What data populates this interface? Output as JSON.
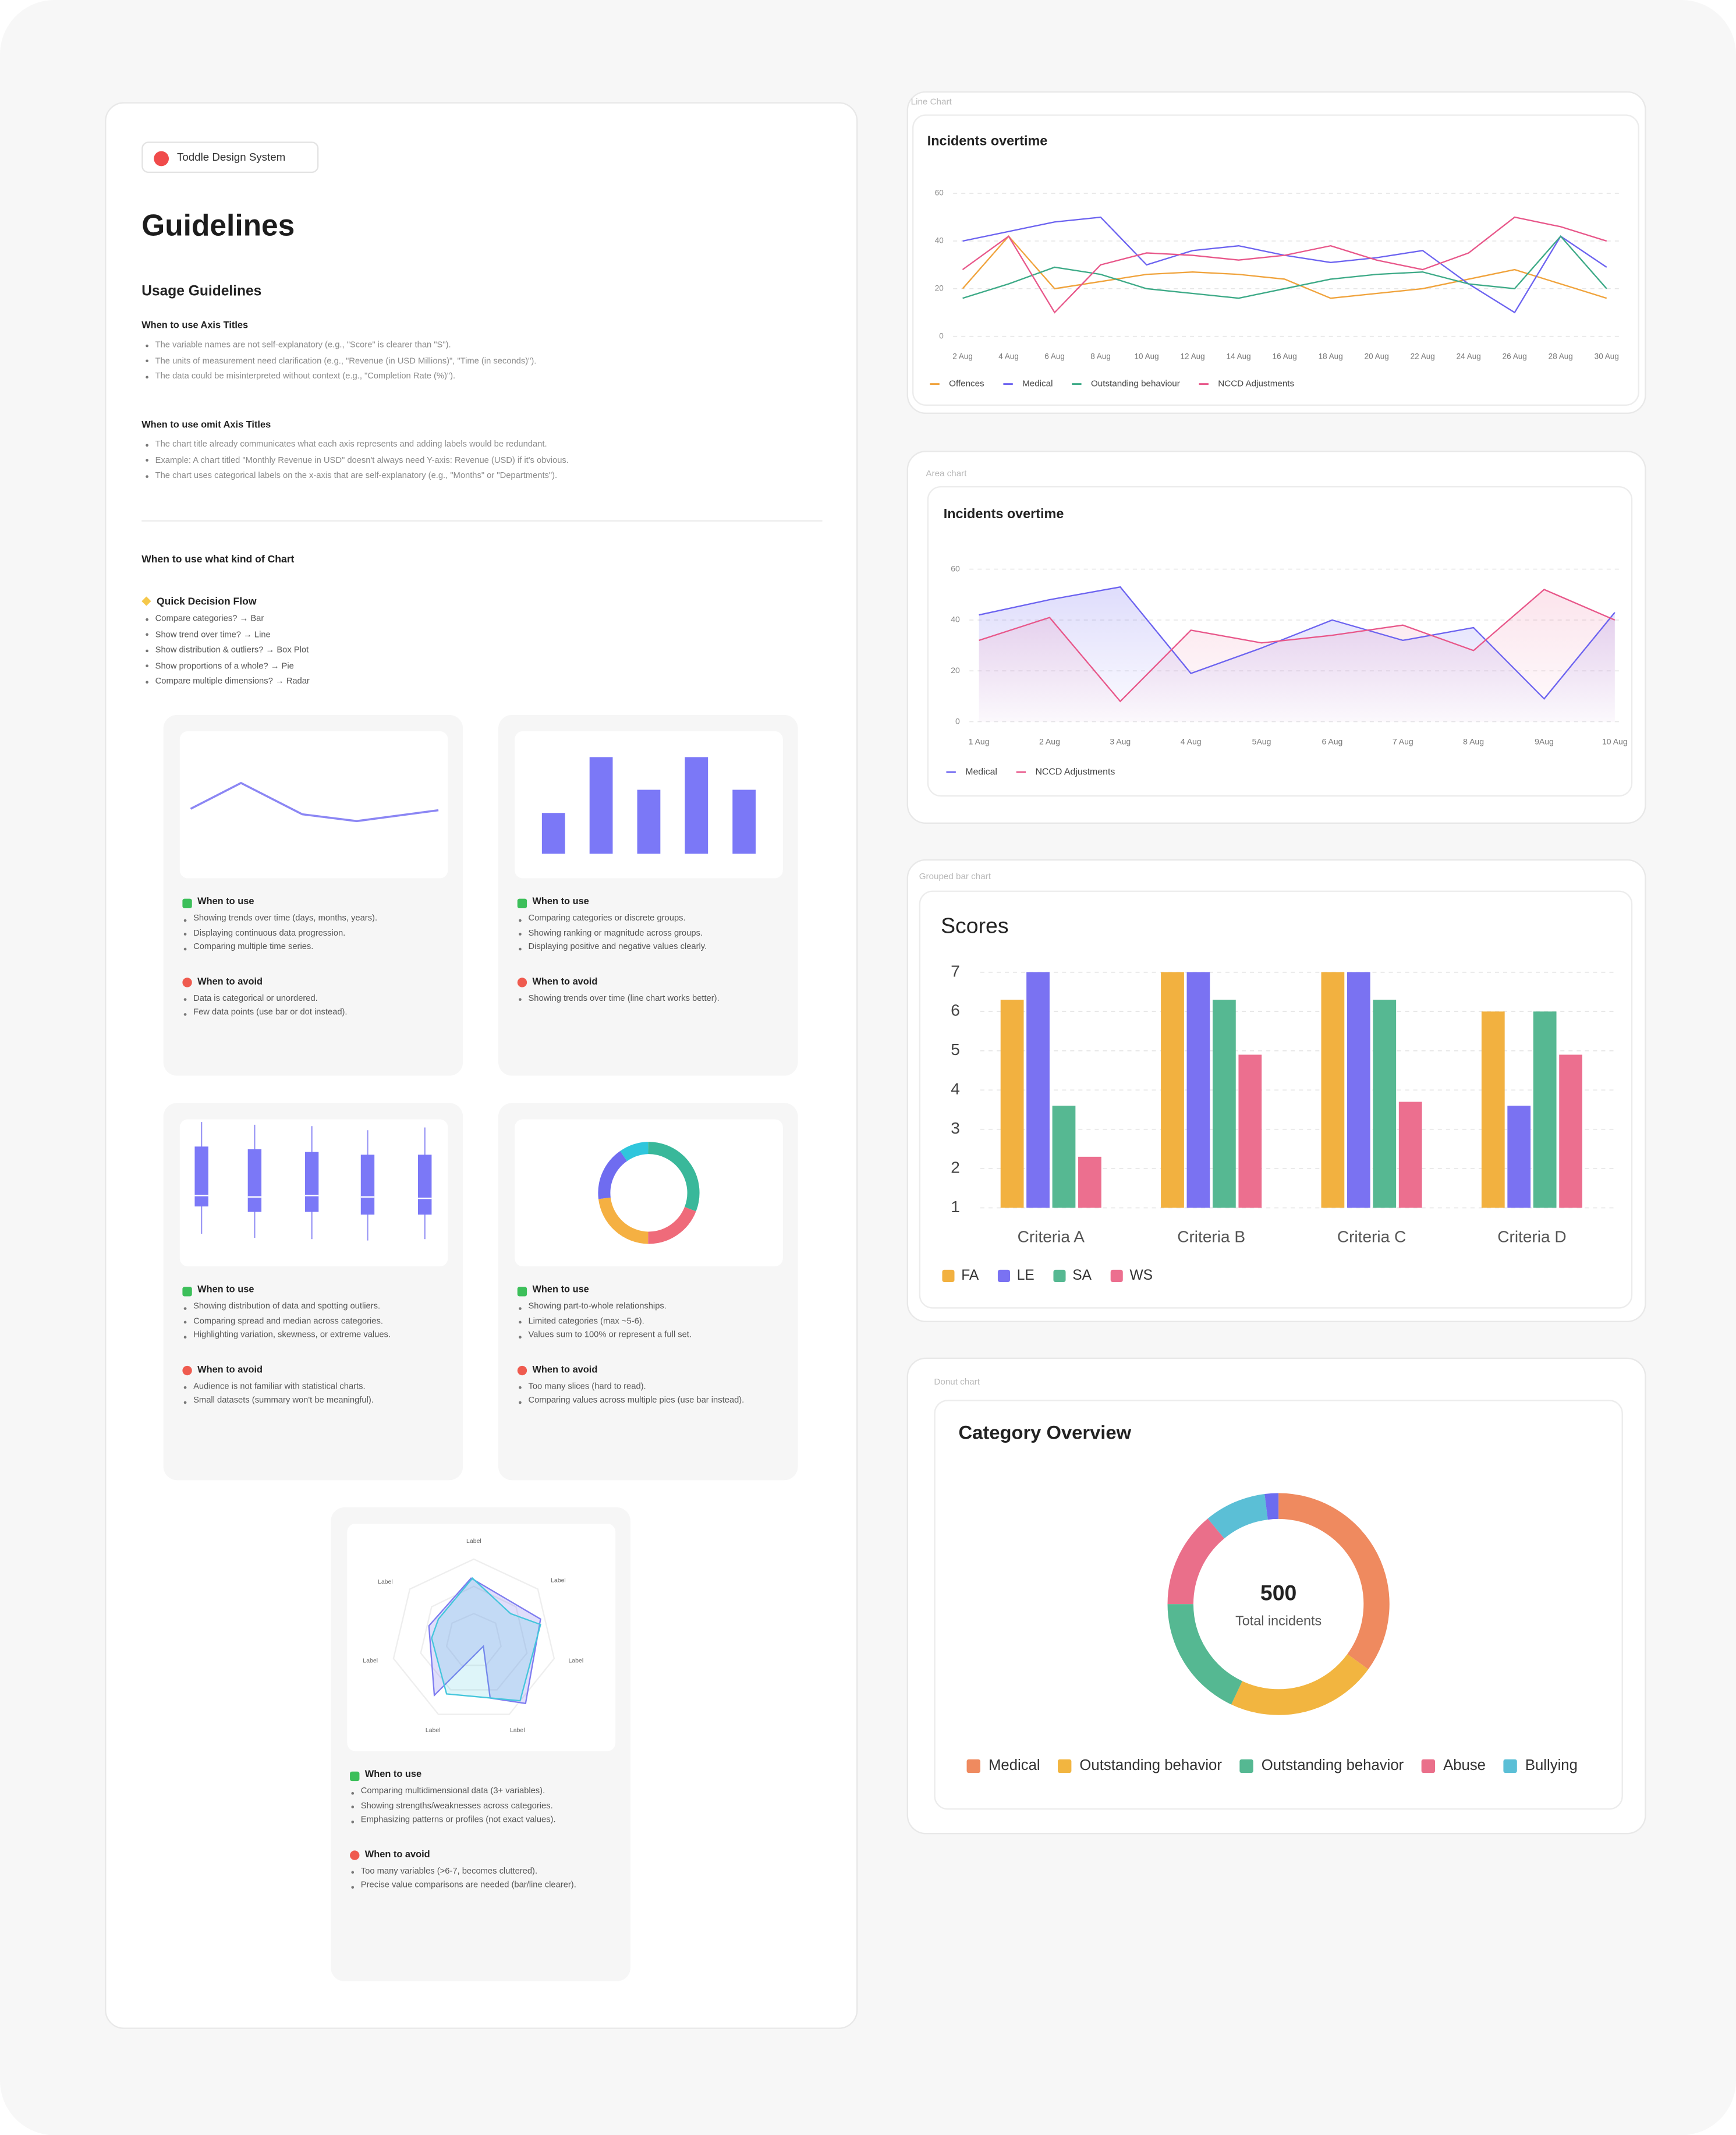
{
  "document": {
    "badge": "Toddle Design System",
    "title": "Guidelines",
    "usage_heading": "Usage Guidelines",
    "axis_sections": [
      {
        "heading": "When to use Axis Titles",
        "items": [
          "The variable names are not self-explanatory (e.g., \"Score\" is clearer than \"S\").",
          "The units of measurement need clarification (e.g., \"Revenue (in USD Millions)\", \"Time (in seconds)\").",
          "The data could be misinterpreted without context (e.g., \"Completion Rate (%)\")."
        ]
      },
      {
        "heading": "When to use omit Axis Titles",
        "items": [
          "The chart title already communicates what each axis represents and adding labels would be redundant.",
          "Example: A chart titled \"Monthly Revenue in USD\" doesn't always need Y-axis: Revenue (USD) if it's obvious.",
          "The chart uses categorical labels on the x-axis that are self-explanatory (e.g., \"Months\" or \"Departments\")."
        ]
      }
    ],
    "chart_choice_heading": "When to use what kind of Chart",
    "decision_flow": {
      "heading": "Quick Decision Flow",
      "items": [
        "Compare categories? → Bar",
        "Show trend over time? → Line",
        "Show distribution & outliers? → Box Plot",
        "Show proportions of a whole? → Pie",
        "Compare multiple dimensions? → Radar"
      ]
    },
    "guide_cards": [
      {
        "use_heading": "When to use",
        "use": [
          "Showing trends over time (days, months, years).",
          "Displaying continuous data progression.",
          "Comparing multiple time series."
        ],
        "avoid_heading": "When to avoid",
        "avoid": [
          "Data is categorical or unordered.",
          "Few data points (use bar or dot instead)."
        ]
      },
      {
        "use_heading": "When to use",
        "use": [
          "Comparing categories or discrete groups.",
          "Showing ranking or magnitude across groups.",
          "Displaying positive and negative values clearly."
        ],
        "avoid_heading": "When to avoid",
        "avoid": [
          "Showing trends over time (line chart works better)."
        ]
      },
      {
        "use_heading": "When to use",
        "use": [
          "Showing distribution of data and spotting outliers.",
          "Comparing spread and median across categories.",
          "Highlighting variation, skewness, or extreme values."
        ],
        "avoid_heading": "When to avoid",
        "avoid": [
          "Audience is not familiar with statistical charts.",
          "Small datasets (summary won't be meaningful)."
        ]
      },
      {
        "use_heading": "When to use",
        "use": [
          "Showing part-to-whole relationships.",
          "Limited categories (max ~5-6).",
          "Values sum to 100% or represent a full set."
        ],
        "avoid_heading": "When to avoid",
        "avoid": [
          "Too many slices (hard to read).",
          "Comparing values across multiple pies (use bar instead)."
        ]
      },
      {
        "use_heading": "When to use",
        "use": [
          "Comparing multidimensional data (3+ variables).",
          "Showing strengths/weaknesses across categories.",
          "Emphasizing patterns or profiles (not exact values)."
        ],
        "avoid_heading": "When to avoid",
        "avoid": [
          "Too many variables (>6-7, becomes cluttered).",
          "Precise value comparisons are needed (bar/line clearer)."
        ]
      }
    ],
    "radar_labels": [
      "Label",
      "Label",
      "Label",
      "Label",
      "Label",
      "Label",
      "Label"
    ]
  },
  "chart_data": [
    {
      "type": "line",
      "panel_label": "Line Chart",
      "title": "Incidents overtime",
      "categories": [
        "2 Aug",
        "4 Aug",
        "6 Aug",
        "8 Aug",
        "10 Aug",
        "12 Aug",
        "14 Aug",
        "16 Aug",
        "18 Aug",
        "20 Aug",
        "22 Aug",
        "24 Aug",
        "26 Aug",
        "28 Aug",
        "30 Aug"
      ],
      "ylim": [
        0,
        60
      ],
      "yticks": [
        0,
        20,
        40,
        60
      ],
      "grid": true,
      "series": [
        {
          "name": "Offences",
          "color": "#f0a33c",
          "values": [
            20,
            42,
            20,
            23,
            26,
            27,
            26,
            24,
            16,
            18,
            20,
            24,
            28,
            22,
            16
          ]
        },
        {
          "name": "Medical",
          "color": "#6c63f0",
          "values": [
            40,
            44,
            48,
            50,
            30,
            36,
            38,
            34,
            31,
            33,
            36,
            22,
            10,
            42,
            29
          ]
        },
        {
          "name": "Outstanding behaviour",
          "color": "#3daa87",
          "values": [
            16,
            22,
            29,
            26,
            20,
            18,
            16,
            20,
            24,
            26,
            27,
            22,
            20,
            42,
            20
          ]
        },
        {
          "name": "NCCD Adjustments",
          "color": "#e8578a",
          "values": [
            28,
            42,
            10,
            30,
            35,
            34,
            32,
            34,
            38,
            32,
            28,
            35,
            50,
            46,
            40
          ]
        }
      ]
    },
    {
      "type": "area",
      "panel_label": "Area chart",
      "title": "Incidents overtime",
      "categories": [
        "1 Aug",
        "2 Aug",
        "3 Aug",
        "4 Aug",
        "5Aug",
        "6 Aug",
        "7 Aug",
        "8 Aug",
        "9Aug",
        "10 Aug"
      ],
      "ylim": [
        0,
        60
      ],
      "yticks": [
        0,
        20,
        40,
        60
      ],
      "grid": true,
      "series": [
        {
          "name": "Medical",
          "color": "#6c63f0",
          "values": [
            42,
            48,
            53,
            19,
            29,
            40,
            32,
            37,
            9,
            43
          ]
        },
        {
          "name": "NCCD Adjustments",
          "color": "#e8578a",
          "values": [
            32,
            41,
            8,
            36,
            31,
            34,
            38,
            28,
            52,
            40
          ]
        }
      ]
    },
    {
      "type": "bar",
      "panel_label": "Grouped bar chart",
      "title": "Scores",
      "categories": [
        "Criteria A",
        "Criteria B",
        "Criteria C",
        "Criteria D"
      ],
      "ylim": [
        1,
        7
      ],
      "yticks": [
        1,
        2,
        3,
        4,
        5,
        6,
        7
      ],
      "grid": true,
      "series": [
        {
          "name": "FA",
          "color": "#f2b140",
          "values": [
            6.3,
            7,
            7,
            6
          ]
        },
        {
          "name": "LE",
          "color": "#7a72f2",
          "values": [
            7,
            7,
            7,
            3.6
          ]
        },
        {
          "name": "SA",
          "color": "#56b892",
          "values": [
            3.6,
            6.3,
            6.3,
            6
          ]
        },
        {
          "name": "WS",
          "color": "#ec6f8f",
          "values": [
            2.3,
            4.9,
            3.7,
            4.9
          ]
        }
      ]
    },
    {
      "type": "donut",
      "panel_label": "Donut chart",
      "title": "Category Overview",
      "center_value": 500,
      "center_label": "Total incidents",
      "categories": [
        "Medical",
        "Outstanding behavior",
        "Outstanding behavior",
        "Abuse",
        "Bullying",
        null
      ],
      "values": [
        175,
        110,
        90,
        70,
        45,
        10
      ],
      "colors": [
        "#ef8a5f",
        "#f2b540",
        "#55b892",
        "#ea6f8a",
        "#5bbfd6",
        "#6c6cf0"
      ]
    }
  ]
}
